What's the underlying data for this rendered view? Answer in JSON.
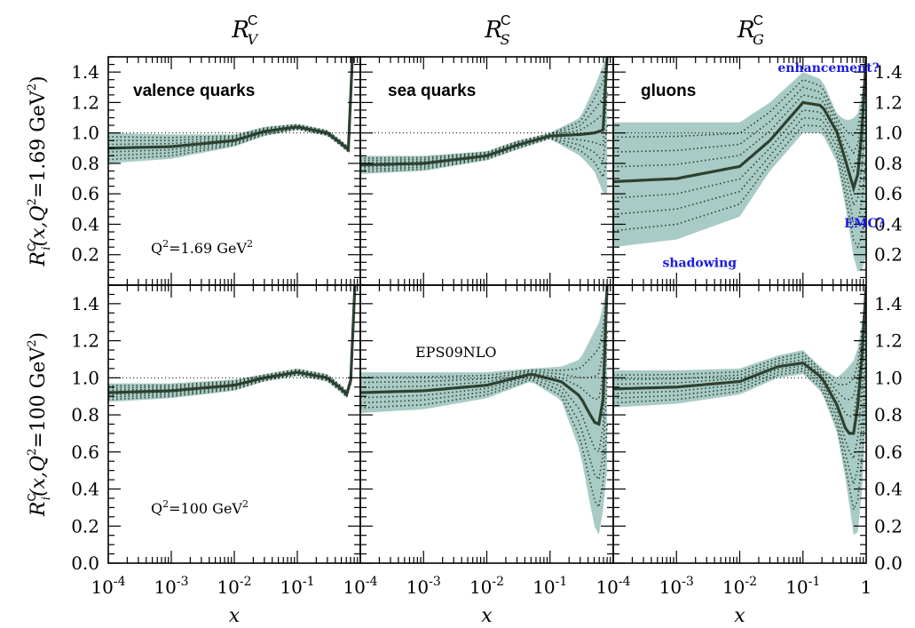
{
  "figure": {
    "column_titles": [
      {
        "base": "R",
        "sub": "V",
        "sup": "C"
      },
      {
        "base": "R",
        "sub": "S",
        "sup": "C"
      },
      {
        "base": "R",
        "sub": "G",
        "sup": "C"
      }
    ],
    "row_ylabels": [
      {
        "prefix": "R",
        "sup": "C",
        "sub": "i",
        "text": "(x,Q",
        "sup2": "2",
        "value": "=1.69 GeV",
        "sup3": "2",
        "close": ")"
      },
      {
        "prefix": "R",
        "sup": "C",
        "sub": "i",
        "text": "(x,Q",
        "sup2": "2",
        "value": "=100 GeV",
        "sup3": "2",
        "close": ")"
      }
    ],
    "xlabel": "x",
    "colors": {
      "band": "#a9cbc6",
      "central": "#2d4030",
      "dotted": "#2d4030",
      "annotation": "#1a1ae0"
    }
  },
  "chart_data": [
    {
      "type": "line",
      "row": 0,
      "col": 0,
      "label": "valence quarks",
      "note": {
        "text": "Q",
        "sup": "2",
        "rest": "=1.69 GeV",
        "sup2": "2"
      },
      "xscale": "log",
      "xlim": [
        0.0001,
        1
      ],
      "ylim": [
        0,
        1.5
      ],
      "x": [
        0.0001,
        0.001,
        0.01,
        0.03,
        0.1,
        0.3,
        0.5,
        0.65,
        0.72,
        0.75
      ],
      "central": [
        0.9,
        0.91,
        0.95,
        1.01,
        1.04,
        1.0,
        0.93,
        0.89,
        1.05,
        1.5
      ],
      "upper": [
        1.0,
        0.99,
        0.99,
        1.04,
        1.06,
        1.02,
        0.95,
        0.91,
        1.08,
        1.5
      ],
      "lower": [
        0.8,
        0.83,
        0.91,
        0.98,
        1.02,
        0.98,
        0.91,
        0.87,
        1.02,
        1.5
      ]
    },
    {
      "type": "line",
      "row": 0,
      "col": 1,
      "label": "sea quarks",
      "xscale": "log",
      "xlim": [
        0.0001,
        1
      ],
      "ylim": [
        0,
        1.5
      ],
      "x": [
        0.0001,
        0.001,
        0.01,
        0.03,
        0.1,
        0.3,
        0.5,
        0.7,
        0.8
      ],
      "central": [
        0.79,
        0.8,
        0.85,
        0.92,
        0.98,
        0.99,
        1.0,
        1.02,
        1.5
      ],
      "upper": [
        0.85,
        0.85,
        0.88,
        0.95,
        1.0,
        1.1,
        1.3,
        1.45,
        1.5
      ],
      "lower": [
        0.73,
        0.75,
        0.82,
        0.89,
        0.96,
        0.85,
        0.75,
        0.6,
        0.6
      ]
    },
    {
      "type": "line",
      "row": 0,
      "col": 2,
      "label": "gluons",
      "annotations": [
        {
          "text": "enhancement?",
          "x": 0.04,
          "y": 1.4
        },
        {
          "text": "EMC?",
          "x": 0.45,
          "y": 0.38
        },
        {
          "text": "shadowing",
          "x": 0.0006,
          "y": 0.12
        }
      ],
      "xscale": "log",
      "xlim": [
        0.0001,
        1
      ],
      "ylim": [
        0,
        1.5
      ],
      "x": [
        0.0001,
        0.001,
        0.01,
        0.03,
        0.1,
        0.2,
        0.35,
        0.5,
        0.65,
        0.8,
        1.0
      ],
      "central": [
        0.68,
        0.7,
        0.78,
        0.95,
        1.2,
        1.18,
        1.0,
        0.78,
        0.62,
        0.8,
        1.5
      ],
      "upper": [
        1.07,
        1.07,
        1.07,
        1.2,
        1.4,
        1.35,
        1.12,
        1.08,
        1.1,
        1.15,
        1.5
      ],
      "lower": [
        0.25,
        0.3,
        0.45,
        0.75,
        1.0,
        1.0,
        0.8,
        0.45,
        0.15,
        0.05,
        0.2
      ]
    },
    {
      "type": "line",
      "row": 1,
      "col": 0,
      "note": {
        "text": "Q",
        "sup": "2",
        "rest": "=100 GeV",
        "sup2": "2"
      },
      "xscale": "log",
      "xlim": [
        0.0001,
        1
      ],
      "ylim": [
        0,
        1.5
      ],
      "x": [
        0.0001,
        0.001,
        0.01,
        0.03,
        0.1,
        0.3,
        0.5,
        0.65,
        0.75,
        0.82
      ],
      "central": [
        0.92,
        0.93,
        0.96,
        1.0,
        1.03,
        1.0,
        0.94,
        0.9,
        1.05,
        1.5
      ],
      "upper": [
        0.97,
        0.97,
        0.99,
        1.02,
        1.05,
        1.02,
        0.96,
        0.92,
        1.08,
        1.5
      ],
      "lower": [
        0.87,
        0.89,
        0.93,
        0.98,
        1.01,
        0.98,
        0.92,
        0.88,
        1.02,
        1.5
      ]
    },
    {
      "type": "line",
      "row": 1,
      "col": 1,
      "note_plain": "EPS09NLO",
      "xscale": "log",
      "xlim": [
        0.0001,
        1
      ],
      "ylim": [
        0,
        1.5
      ],
      "x": [
        0.0001,
        0.001,
        0.01,
        0.05,
        0.15,
        0.3,
        0.5,
        0.6,
        0.7,
        0.8
      ],
      "central": [
        0.92,
        0.93,
        0.96,
        1.02,
        0.98,
        0.9,
        0.76,
        0.75,
        0.9,
        1.5
      ],
      "upper": [
        1.03,
        1.03,
        1.03,
        1.05,
        1.06,
        1.1,
        1.25,
        1.3,
        1.4,
        1.5
      ],
      "lower": [
        0.81,
        0.83,
        0.89,
        0.98,
        0.88,
        0.6,
        0.2,
        0.15,
        0.3,
        0.5
      ]
    },
    {
      "type": "line",
      "row": 1,
      "col": 2,
      "xscale": "log",
      "xlim": [
        0.0001,
        1
      ],
      "ylim": [
        0,
        1.5
      ],
      "x": [
        0.0001,
        0.001,
        0.01,
        0.04,
        0.1,
        0.2,
        0.35,
        0.5,
        0.65,
        0.8,
        1.0
      ],
      "central": [
        0.94,
        0.95,
        0.98,
        1.06,
        1.08,
        1.0,
        0.85,
        0.7,
        0.7,
        0.95,
        1.5
      ],
      "upper": [
        1.04,
        1.04,
        1.05,
        1.12,
        1.15,
        1.05,
        1.0,
        1.05,
        1.1,
        1.2,
        1.5
      ],
      "lower": [
        0.84,
        0.86,
        0.91,
        1.0,
        1.02,
        0.92,
        0.7,
        0.4,
        0.12,
        0.2,
        0.8
      ]
    }
  ],
  "axes": {
    "yticks": [
      "0.2",
      "0.4",
      "0.6",
      "0.8",
      "1.0",
      "1.2",
      "1.4"
    ],
    "yticks_bottom": [
      "0.0",
      "0.2",
      "0.4",
      "0.6",
      "0.8",
      "1.0",
      "1.2",
      "1.4"
    ],
    "xtick_labels": [
      {
        "base": "10",
        "exp": "-4"
      },
      {
        "base": "10",
        "exp": "-3"
      },
      {
        "base": "10",
        "exp": "-2"
      },
      {
        "base": "10",
        "exp": "-1"
      }
    ],
    "xtick_last": "1"
  }
}
